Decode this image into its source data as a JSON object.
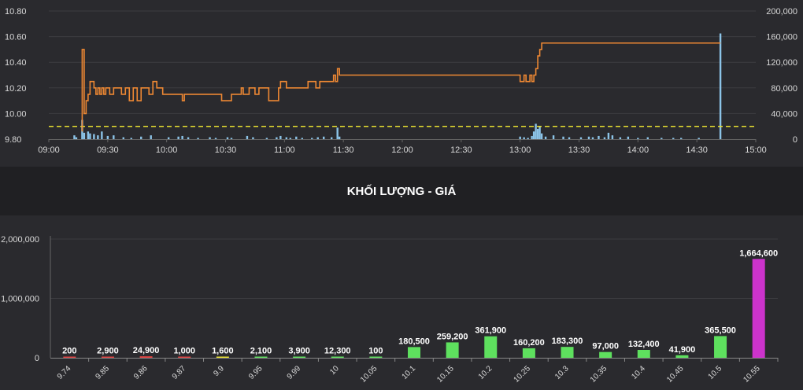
{
  "colors": {
    "background": "#2a2a2e",
    "band": "#202023",
    "grid": "#3c3c40",
    "axis_text": "#d8d8d8",
    "price_line": "#ee8833",
    "volume_bar": "#8cc4e8",
    "reference_line": "#e8e030",
    "down_bar": "#e04040",
    "up_bar": "#5ee05e",
    "ceiling_bar": "#cc33cc",
    "label_text": "#ffffff"
  },
  "volume_section": {
    "title": "KHỐI LƯỢNG - GIÁ"
  },
  "chart_data": [
    {
      "type": "line",
      "y_left_ticks": [
        "9.80",
        "10.00",
        "10.20",
        "10.40",
        "10.60",
        "10.80"
      ],
      "y_right_ticks": [
        "0",
        "40,000",
        "80,000",
        "120,000",
        "160,000",
        "200,000"
      ],
      "x_ticks": [
        "09:00",
        "09:30",
        "10:00",
        "10:30",
        "11:00",
        "11:30",
        "12:00",
        "12:30",
        "13:00",
        "13:30",
        "14:00",
        "14:30",
        "15:00"
      ],
      "price_ylim": [
        9.8,
        10.8
      ],
      "volume_ylim": [
        0,
        200000
      ],
      "reference_price": 9.9,
      "price_series": [
        [
          "09:17",
          9.86
        ],
        [
          "09:17",
          10.5
        ],
        [
          "09:18",
          10.0
        ],
        [
          "09:19",
          10.1
        ],
        [
          "09:20",
          10.15
        ],
        [
          "09:21",
          10.25
        ],
        [
          "09:22",
          10.25
        ],
        [
          "09:23",
          10.2
        ],
        [
          "09:24",
          10.15
        ],
        [
          "09:25",
          10.2
        ],
        [
          "09:26",
          10.15
        ],
        [
          "09:27",
          10.2
        ],
        [
          "09:28",
          10.15
        ],
        [
          "09:29",
          10.2
        ],
        [
          "09:31",
          10.15
        ],
        [
          "09:33",
          10.2
        ],
        [
          "09:35",
          10.2
        ],
        [
          "09:37",
          10.15
        ],
        [
          "09:39",
          10.2
        ],
        [
          "09:41",
          10.1
        ],
        [
          "09:43",
          10.2
        ],
        [
          "09:45",
          10.1
        ],
        [
          "09:47",
          10.2
        ],
        [
          "09:49",
          10.2
        ],
        [
          "09:51",
          10.15
        ],
        [
          "09:53",
          10.25
        ],
        [
          "09:55",
          10.2
        ],
        [
          "09:58",
          10.15
        ],
        [
          "10:05",
          10.15
        ],
        [
          "10:07",
          10.15
        ],
        [
          "10:08",
          10.1
        ],
        [
          "10:09",
          10.15
        ],
        [
          "10:20",
          10.15
        ],
        [
          "10:25",
          10.15
        ],
        [
          "10:28",
          10.1
        ],
        [
          "10:33",
          10.15
        ],
        [
          "10:37",
          10.15
        ],
        [
          "10:38",
          10.2
        ],
        [
          "10:39",
          10.15
        ],
        [
          "10:42",
          10.2
        ],
        [
          "10:45",
          10.15
        ],
        [
          "10:47",
          10.2
        ],
        [
          "10:50",
          10.2
        ],
        [
          "10:52",
          10.1
        ],
        [
          "10:55",
          10.1
        ],
        [
          "10:57",
          10.2
        ],
        [
          "10:58",
          10.25
        ],
        [
          "11:00",
          10.25
        ],
        [
          "11:01",
          10.2
        ],
        [
          "11:11",
          10.2
        ],
        [
          "11:12",
          10.25
        ],
        [
          "11:15",
          10.25
        ],
        [
          "11:16",
          10.2
        ],
        [
          "11:18",
          10.25
        ],
        [
          "11:24",
          10.25
        ],
        [
          "11:25",
          10.3
        ],
        [
          "11:26",
          10.25
        ],
        [
          "11:27",
          10.35
        ],
        [
          "11:28",
          10.3
        ],
        [
          "13:00",
          10.3
        ],
        [
          "13:00",
          10.25
        ],
        [
          "13:02",
          10.3
        ],
        [
          "13:03",
          10.25
        ],
        [
          "13:05",
          10.3
        ],
        [
          "13:06",
          10.25
        ],
        [
          "13:07",
          10.3
        ],
        [
          "13:08",
          10.35
        ],
        [
          "13:09",
          10.45
        ],
        [
          "13:10",
          10.5
        ],
        [
          "13:11",
          10.55
        ],
        [
          "14:42",
          10.55
        ]
      ],
      "volume_series": [
        [
          "09:13",
          6000
        ],
        [
          "09:14",
          3000
        ],
        [
          "09:17",
          30000
        ],
        [
          "09:18",
          10000
        ],
        [
          "09:20",
          12000
        ],
        [
          "09:21",
          9000
        ],
        [
          "09:23",
          8000
        ],
        [
          "09:25",
          6000
        ],
        [
          "09:27",
          12000
        ],
        [
          "09:30",
          5000
        ],
        [
          "09:33",
          6000
        ],
        [
          "09:38",
          3000
        ],
        [
          "09:42",
          2000
        ],
        [
          "09:47",
          4000
        ],
        [
          "09:52",
          6000
        ],
        [
          "10:01",
          3000
        ],
        [
          "10:06",
          4000
        ],
        [
          "10:08",
          5000
        ],
        [
          "10:11",
          3000
        ],
        [
          "10:16",
          2000
        ],
        [
          "10:22",
          3000
        ],
        [
          "10:25",
          2000
        ],
        [
          "10:31",
          3000
        ],
        [
          "10:33",
          2000
        ],
        [
          "10:41",
          5000
        ],
        [
          "10:44",
          3000
        ],
        [
          "10:51",
          2000
        ],
        [
          "10:56",
          3000
        ],
        [
          "10:58",
          5000
        ],
        [
          "11:01",
          3000
        ],
        [
          "11:03",
          2000
        ],
        [
          "11:06",
          4000
        ],
        [
          "11:09",
          2000
        ],
        [
          "11:14",
          2000
        ],
        [
          "11:17",
          3000
        ],
        [
          "11:20",
          4000
        ],
        [
          "11:24",
          3000
        ],
        [
          "11:27",
          18000
        ],
        [
          "11:28",
          4000
        ],
        [
          "13:00",
          4000
        ],
        [
          "13:02",
          3000
        ],
        [
          "13:04",
          2000
        ],
        [
          "13:06",
          5000
        ],
        [
          "13:07",
          12000
        ],
        [
          "13:08",
          24000
        ],
        [
          "13:09",
          16000
        ],
        [
          "13:10",
          20000
        ],
        [
          "13:11",
          9000
        ],
        [
          "13:13",
          4000
        ],
        [
          "13:17",
          6000
        ],
        [
          "13:22",
          4000
        ],
        [
          "13:25",
          3000
        ],
        [
          "13:31",
          3000
        ],
        [
          "13:35",
          4000
        ],
        [
          "13:37",
          3000
        ],
        [
          "13:40",
          5000
        ],
        [
          "13:43",
          3000
        ],
        [
          "13:45",
          10000
        ],
        [
          "13:47",
          6000
        ],
        [
          "13:51",
          3000
        ],
        [
          "13:55",
          4000
        ],
        [
          "14:00",
          2000
        ],
        [
          "14:05",
          3000
        ],
        [
          "14:12",
          2000
        ],
        [
          "14:18",
          2000
        ],
        [
          "14:22",
          2000
        ],
        [
          "14:31",
          2000
        ],
        [
          "14:42",
          165000
        ]
      ]
    },
    {
      "type": "bar",
      "title": "KHỐI LƯỢNG - GIÁ",
      "categories": [
        "9.74",
        "9.85",
        "9.86",
        "9.87",
        "9.9",
        "9.95",
        "9.99",
        "10",
        "10.05",
        "10.1",
        "10.15",
        "10.2",
        "10.25",
        "10.3",
        "10.35",
        "10.4",
        "10.45",
        "10.5",
        "10.55"
      ],
      "values": [
        200,
        2900,
        24900,
        1000,
        1600,
        2100,
        3900,
        12300,
        100,
        180500,
        259200,
        361900,
        160200,
        183300,
        97000,
        132400,
        41900,
        365500,
        1664600
      ],
      "value_labels": [
        "200",
        "2,900",
        "24,900",
        "1,000",
        "1,600",
        "2,100",
        "3,900",
        "12,300",
        "100",
        "180,500",
        "259,200",
        "361,900",
        "160,200",
        "183,300",
        "97,000",
        "132,400",
        "41,900",
        "365,500",
        "1,664,600"
      ],
      "bar_colors": [
        "#e04040",
        "#e04040",
        "#e04040",
        "#e04040",
        "#e8e030",
        "#5ee05e",
        "#5ee05e",
        "#5ee05e",
        "#5ee05e",
        "#5ee05e",
        "#5ee05e",
        "#5ee05e",
        "#5ee05e",
        "#5ee05e",
        "#5ee05e",
        "#5ee05e",
        "#5ee05e",
        "#5ee05e",
        "#cc33cc"
      ],
      "y_ticks": [
        "0",
        "1,000,000",
        "2,000,000"
      ],
      "ylim": [
        0,
        2000000
      ]
    }
  ]
}
